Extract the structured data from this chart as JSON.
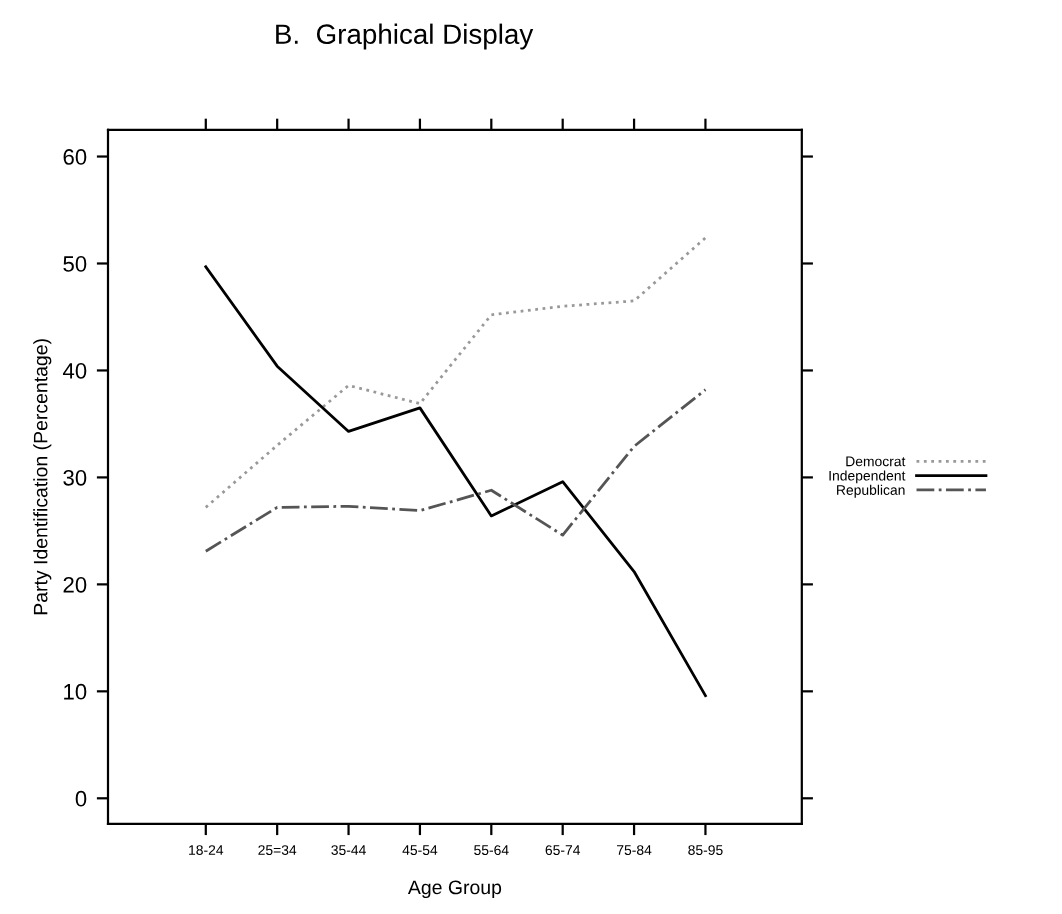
{
  "chart_data": {
    "type": "line",
    "title": "B.  Graphical Display",
    "xlabel": "Age Group",
    "ylabel": "Party Identification (Percentage)",
    "categories": [
      "18-24",
      "25=34",
      "35-44",
      "45-54",
      "55-64",
      "65-74",
      "75-84",
      "85-95"
    ],
    "ylim": [
      -2.4,
      62.5
    ],
    "yticks": [
      0,
      10,
      20,
      30,
      40,
      50,
      60
    ],
    "grid": false,
    "legend": "right",
    "marker": "none",
    "series": [
      {
        "name": "Democrat",
        "color": "#999999",
        "line_style": "dotted",
        "values": [
          27.2,
          33.0,
          38.6,
          36.9,
          45.2,
          46.0,
          46.5,
          52.4
        ]
      },
      {
        "name": "Independent",
        "color": "#000000",
        "line_style": "solid",
        "values": [
          49.7,
          40.4,
          34.3,
          36.5,
          26.4,
          29.6,
          21.2,
          9.6
        ]
      },
      {
        "name": "Republican",
        "color": "#555555",
        "line_style": "dashdot",
        "values": [
          23.1,
          27.2,
          27.3,
          26.9,
          28.8,
          24.6,
          32.9,
          38.2
        ]
      }
    ]
  }
}
